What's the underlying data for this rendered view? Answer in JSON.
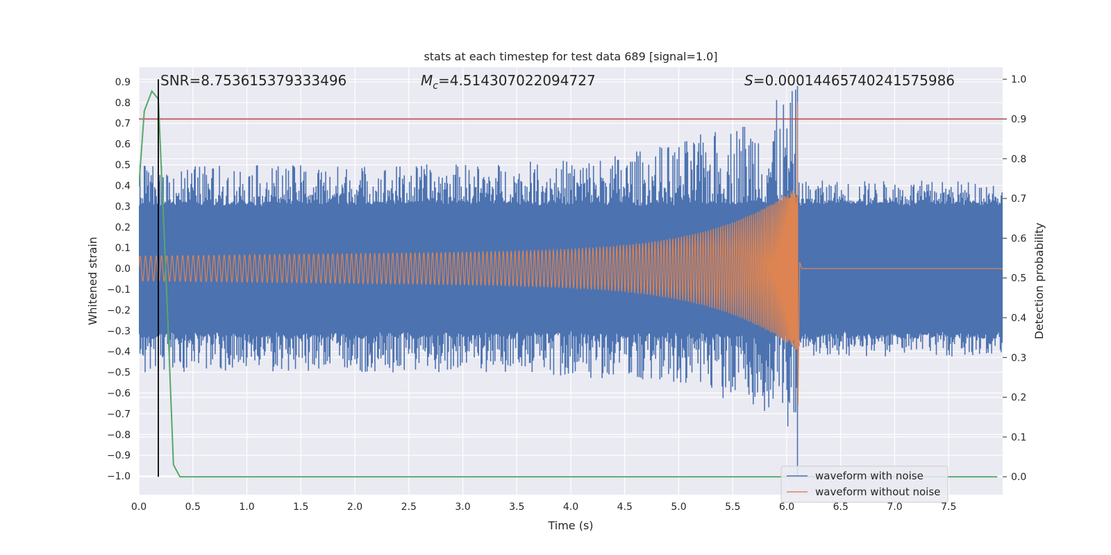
{
  "chart_data": {
    "type": "line",
    "title": "stats at each timestep for test data 689 [signal=1.0]",
    "xlabel": "Time (s)",
    "ylabel": "Whitened strain",
    "y2label": "Detection probability",
    "xlim": [
      0.0,
      8.0
    ],
    "ylim": [
      -1.09,
      0.97
    ],
    "y2lim": [
      -0.045,
      1.03
    ],
    "xticks": [
      "0.0",
      "0.5",
      "1.0",
      "1.5",
      "2.0",
      "2.5",
      "3.0",
      "3.5",
      "4.0",
      "4.5",
      "5.0",
      "5.5",
      "6.0",
      "6.5",
      "7.0",
      "7.5"
    ],
    "yticks": [
      "0.9",
      "0.8",
      "0.7",
      "0.6",
      "0.5",
      "0.4",
      "0.3",
      "0.2",
      "0.1",
      "0.0",
      "-0.1",
      "-0.2",
      "-0.3",
      "-0.4",
      "-0.5",
      "-0.6",
      "-0.7",
      "-0.8",
      "-0.9",
      "-1.0"
    ],
    "y2ticks": [
      "1.0",
      "0.9",
      "0.8",
      "0.7",
      "0.6",
      "0.5",
      "0.4",
      "0.3",
      "0.2",
      "0.1",
      "0.0"
    ],
    "annotations": {
      "snr": "SNR=8.753615379333496",
      "mc_symbol": "M",
      "mc_sub": "c",
      "mc_value": "=4.514307022094727",
      "s_symbol": "S",
      "s_value": "=0.00014465740241575986"
    },
    "series": [
      {
        "name": "waveform with noise",
        "color": "#4c72b0",
        "noise_band": 0.3,
        "spike_max": 0.55,
        "merger_time": 6.1,
        "merger_peak": 0.88,
        "merger_trough": -1.0
      },
      {
        "name": "waveform without noise",
        "color": "#dd8452",
        "start_amplitude": 0.06,
        "merger_time": 6.1,
        "merger_peak": 0.8,
        "merger_trough": -0.66,
        "post_merger_amplitude": 0.0
      },
      {
        "name": "detection probability",
        "color": "#55a868",
        "axis": "right",
        "x": [
          0.0,
          0.05,
          0.12,
          0.18,
          0.26,
          0.32,
          0.38,
          7.95
        ],
        "values": [
          0.73,
          0.92,
          0.97,
          0.95,
          0.45,
          0.03,
          0.0,
          0.0
        ]
      }
    ],
    "threshold_line": {
      "value": 0.9,
      "axis": "right",
      "color": "#c44e52"
    },
    "vertical_marker": {
      "x": 0.18,
      "color": "#000000"
    },
    "legend": {
      "position": "lower-right",
      "entries": [
        "waveform with noise",
        "waveform without noise"
      ]
    }
  }
}
